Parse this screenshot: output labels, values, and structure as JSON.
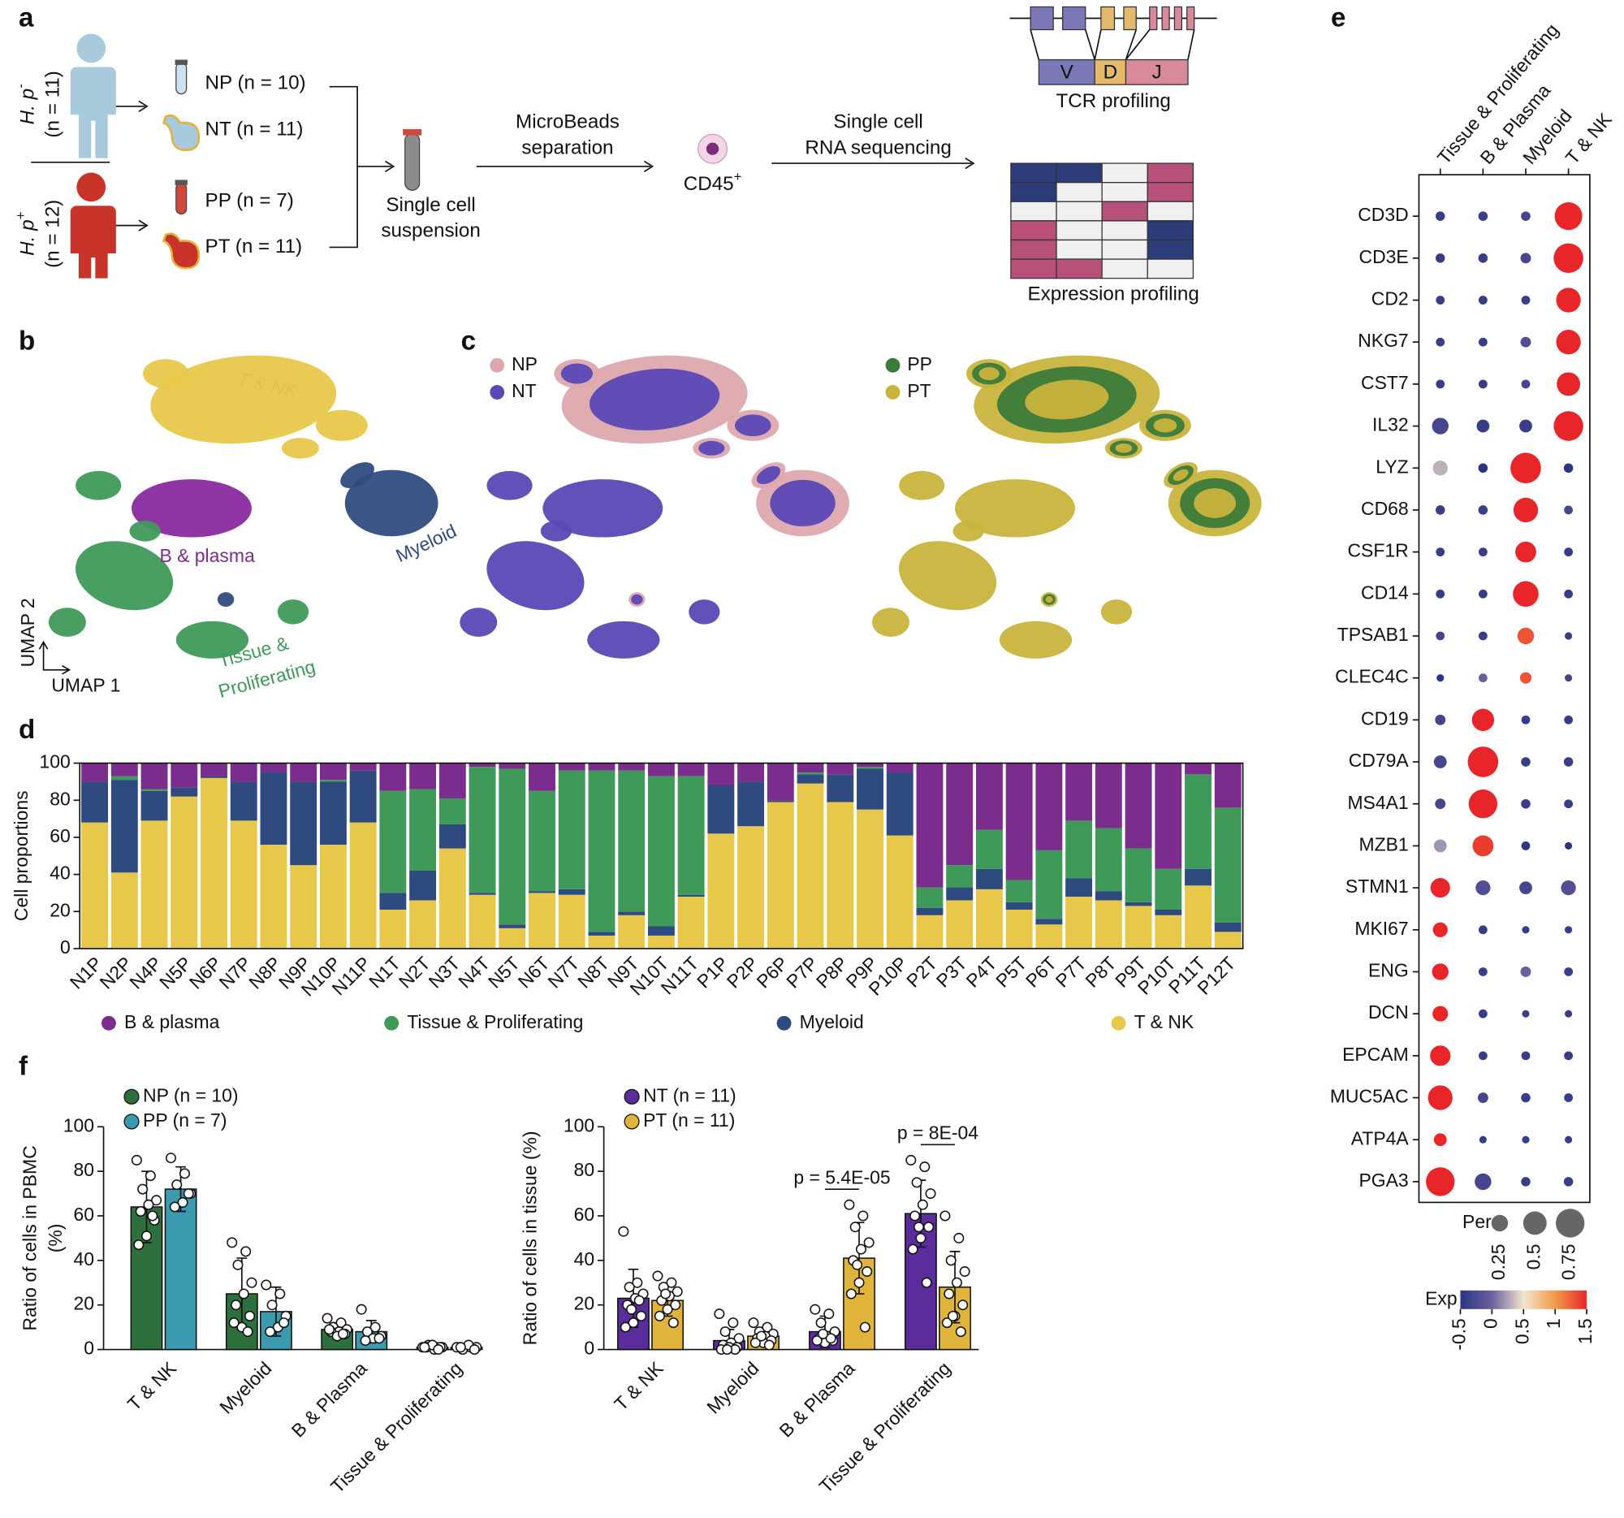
{
  "panels": [
    "a",
    "b",
    "c",
    "d",
    "e",
    "f"
  ],
  "schematic": {
    "hp": "H. p",
    "hp_neg": "-",
    "hp_pos": "+",
    "n_neg": "(n = 11)",
    "n_pos": "(n = 12)",
    "samples": [
      "NP (n = 10)",
      "NT (n = 11)",
      "PP (n = 7)",
      "PT (n = 11)"
    ],
    "suspension": [
      "Single cell",
      "suspension"
    ],
    "separation": [
      "MicroBeads",
      "separation"
    ],
    "cd45": "CD45",
    "cd45_sup": "+",
    "sequencing": [
      "Single cell",
      "RNA sequencing"
    ],
    "segments": [
      "V",
      "D",
      "J"
    ],
    "tcr": "TCR profiling",
    "expression": "Expression profiling"
  },
  "umap": {
    "clusters": [
      "T & NK",
      "B & plasma",
      "Myeloid"
    ],
    "tissue_lines": [
      "Tissue &",
      "Proliferating"
    ],
    "axes": [
      "UMAP 2",
      "UMAP 1"
    ],
    "legend": [
      {
        "name": "NP",
        "color": "#dca8ad"
      },
      {
        "name": "NT",
        "color": "#5a48b5"
      },
      {
        "name": "PP",
        "color": "#3b7a3b"
      },
      {
        "name": "PT",
        "color": "#c8b43c"
      }
    ]
  },
  "chart_data": [
    {
      "type": "stacked_bar",
      "ylabel": "Cell proportions",
      "categories": [
        "N1P",
        "N2P",
        "N4P",
        "N5P",
        "N6P",
        "N7P",
        "N8P",
        "N9P",
        "N10P",
        "N11P",
        "N1T",
        "N2T",
        "N3T",
        "N4T",
        "N5T",
        "N6T",
        "N7T",
        "N8T",
        "N9T",
        "N10T",
        "N11T",
        "P1P",
        "P2P",
        "P6P",
        "P7P",
        "P8P",
        "P9P",
        "P10P",
        "P2T",
        "P3T",
        "P4T",
        "P5T",
        "P6T",
        "P7T",
        "P8T",
        "P9T",
        "P10T",
        "P11T",
        "P12T"
      ],
      "series": [
        {
          "name": "B & plasma",
          "color": "#7b2d8e",
          "values": [
            10,
            7,
            14,
            13,
            7,
            10,
            5,
            10,
            9,
            4,
            15,
            14,
            19,
            2,
            3,
            15,
            4,
            4,
            4,
            7,
            7,
            12,
            10,
            20,
            5,
            6,
            2,
            5,
            67,
            55,
            36,
            63,
            47,
            31,
            35,
            46,
            57,
            6,
            24
          ]
        },
        {
          "name": "Tissue & Proliferating",
          "color": "#3f9a5a",
          "values": [
            0,
            2,
            1,
            0,
            0,
            0,
            0,
            0,
            1,
            0,
            55,
            44,
            14,
            68,
            84,
            54,
            64,
            87,
            76,
            81,
            64,
            0,
            0,
            0,
            1,
            0,
            1,
            0,
            11,
            12,
            21,
            12,
            37,
            31,
            34,
            29,
            22,
            51,
            62
          ]
        },
        {
          "name": "Myeloid",
          "color": "#2e4a7f",
          "values": [
            22,
            50,
            16,
            5,
            1,
            21,
            39,
            45,
            34,
            28,
            9,
            16,
            13,
            1,
            2,
            1,
            3,
            2,
            2,
            5,
            1,
            26,
            24,
            1,
            5,
            15,
            22,
            34,
            4,
            7,
            11,
            4,
            3,
            10,
            5,
            2,
            3,
            9,
            5
          ]
        },
        {
          "name": "T & NK",
          "color": "#e8c84a",
          "values": [
            68,
            41,
            69,
            82,
            92,
            69,
            56,
            45,
            56,
            68,
            21,
            26,
            54,
            29,
            11,
            30,
            29,
            7,
            18,
            7,
            28,
            62,
            66,
            79,
            89,
            79,
            75,
            61,
            18,
            26,
            32,
            21,
            13,
            28,
            26,
            23,
            18,
            34,
            9
          ]
        }
      ],
      "ylim": [
        0,
        100
      ],
      "yticks": [
        0,
        20,
        40,
        60,
        80,
        100
      ]
    },
    {
      "type": "dot",
      "groups": [
        "Tissue & Proliferating",
        "B & Plasma",
        "Myeloid",
        "T & NK"
      ],
      "genes": [
        "CD3D",
        "CD3E",
        "CD2",
        "NKG7",
        "CST7",
        "IL32",
        "LYZ",
        "CD68",
        "CSF1R",
        "CD14",
        "TPSAB1",
        "CLEC4C",
        "CD19",
        "CD79A",
        "MS4A1",
        "MZB1",
        "STMN1",
        "MKI67",
        "ENG",
        "DCN",
        "EPCAM",
        "MUC5AC",
        "ATP4A",
        "PGA3"
      ],
      "per": [
        [
          0.08,
          0.08,
          0.08,
          0.7
        ],
        [
          0.08,
          0.08,
          0.1,
          0.8
        ],
        [
          0.07,
          0.07,
          0.07,
          0.55
        ],
        [
          0.07,
          0.07,
          0.1,
          0.55
        ],
        [
          0.07,
          0.07,
          0.07,
          0.5
        ],
        [
          0.25,
          0.15,
          0.15,
          0.8
        ],
        [
          0.2,
          0.08,
          0.85,
          0.08
        ],
        [
          0.08,
          0.08,
          0.55,
          0.07
        ],
        [
          0.07,
          0.07,
          0.4,
          0.07
        ],
        [
          0.07,
          0.07,
          0.6,
          0.07
        ],
        [
          0.07,
          0.07,
          0.25,
          0.05
        ],
        [
          0.05,
          0.07,
          0.12,
          0.05
        ],
        [
          0.1,
          0.45,
          0.07,
          0.07
        ],
        [
          0.15,
          0.85,
          0.08,
          0.08
        ],
        [
          0.1,
          0.75,
          0.08,
          0.07
        ],
        [
          0.15,
          0.4,
          0.07,
          0.05
        ],
        [
          0.35,
          0.2,
          0.15,
          0.2
        ],
        [
          0.2,
          0.07,
          0.05,
          0.05
        ],
        [
          0.25,
          0.07,
          0.1,
          0.07
        ],
        [
          0.22,
          0.07,
          0.05,
          0.05
        ],
        [
          0.38,
          0.07,
          0.07,
          0.07
        ],
        [
          0.55,
          0.1,
          0.08,
          0.07
        ],
        [
          0.15,
          0.05,
          0.05,
          0.05
        ],
        [
          0.75,
          0.25,
          0.08,
          0.08
        ]
      ],
      "exp": [
        [
          -0.4,
          -0.4,
          -0.3,
          1.5
        ],
        [
          -0.4,
          -0.4,
          -0.3,
          1.5
        ],
        [
          -0.4,
          -0.4,
          -0.4,
          1.5
        ],
        [
          -0.4,
          -0.4,
          -0.2,
          1.5
        ],
        [
          -0.4,
          -0.4,
          -0.3,
          1.5
        ],
        [
          -0.3,
          -0.4,
          -0.4,
          1.5
        ],
        [
          0.3,
          -0.6,
          1.5,
          -0.6
        ],
        [
          -0.4,
          -0.4,
          1.5,
          -0.3
        ],
        [
          -0.4,
          -0.4,
          1.5,
          -0.4
        ],
        [
          -0.4,
          -0.4,
          1.5,
          -0.4
        ],
        [
          -0.3,
          -0.4,
          1.3,
          -0.4
        ],
        [
          -0.5,
          0,
          1.3,
          -0.3
        ],
        [
          -0.3,
          1.5,
          -0.4,
          -0.4
        ],
        [
          -0.3,
          1.5,
          -0.4,
          -0.4
        ],
        [
          -0.3,
          1.5,
          -0.4,
          -0.4
        ],
        [
          0.2,
          1.4,
          -0.5,
          -0.6
        ],
        [
          1.5,
          -0.2,
          -0.3,
          -0.2
        ],
        [
          1.5,
          -0.4,
          -0.4,
          -0.4
        ],
        [
          1.5,
          -0.4,
          0,
          -0.4
        ],
        [
          1.5,
          -0.4,
          -0.4,
          -0.4
        ],
        [
          1.5,
          -0.4,
          -0.4,
          -0.4
        ],
        [
          1.5,
          -0.3,
          -0.4,
          -0.4
        ],
        [
          1.5,
          -0.4,
          -0.4,
          -0.4
        ],
        [
          1.5,
          -0.3,
          -0.4,
          -0.4
        ]
      ],
      "size_title": "Per",
      "size_ticks": [
        0.25,
        0.5,
        0.75
      ],
      "color_title": "Exp",
      "color_lim": [
        -0.5,
        1.5
      ],
      "color_ticks": [
        -0.5,
        0,
        0.5,
        1,
        1.5
      ],
      "colors": [
        "#2b3584",
        "#6b5f9e",
        "#f1e6cf",
        "#f19a48",
        "#e8262a"
      ]
    },
    {
      "type": "bar",
      "ylabel": [
        "Ratio of cells in PBMC",
        "(%)"
      ],
      "categories": [
        "T & NK",
        "Myeloid",
        "B & Plasma",
        "Tissue & Proliferating"
      ],
      "series": [
        {
          "name": "NP (n = 10)",
          "color": "#2e6f3e",
          "values": [
            64,
            25,
            9,
            1
          ],
          "errors": [
            16,
            16,
            3,
            0.5
          ],
          "points": [
            [
              85,
              78,
              72,
              67,
              65,
              62,
              58,
              51,
              47,
              60
            ],
            [
              48,
              44,
              38,
              30,
              25,
              20,
              15,
              10,
              12,
              8
            ],
            [
              14,
              12,
              10,
              9,
              8,
              8,
              7,
              6,
              9,
              7
            ],
            [
              1,
              1,
              2,
              1,
              0,
              1,
              1,
              2,
              1,
              0
            ]
          ]
        },
        {
          "name": "PP (n = 7)",
          "color": "#3b9aad",
          "values": [
            72,
            17,
            8,
            1
          ],
          "errors": [
            10,
            11,
            5,
            0.5
          ],
          "points": [
            [
              86,
              79,
              74,
              70,
              66,
              64,
              70
            ],
            [
              29,
              25,
              20,
              15,
              10,
              8,
              12
            ],
            [
              18,
              10,
              8,
              6,
              5,
              4,
              5
            ],
            [
              1,
              1,
              0,
              1,
              2,
              1,
              0
            ]
          ]
        }
      ],
      "ylim": [
        0,
        100
      ],
      "yticks": [
        0,
        20,
        40,
        60,
        80,
        100
      ]
    },
    {
      "type": "bar",
      "ylabel": [
        "Ratio of cells in tissue (%)"
      ],
      "categories": [
        "T & NK",
        "Myeloid",
        "B & Plasma",
        "Tissue & Proliferating"
      ],
      "series": [
        {
          "name": "NT (n = 11)",
          "color": "#5b2d9c",
          "values": [
            23,
            4,
            8,
            61
          ],
          "errors": [
            13,
            5,
            7,
            15
          ],
          "points": [
            [
              53,
              30,
              28,
              25,
              23,
              20,
              15,
              12,
              10,
              22,
              18
            ],
            [
              16,
              12,
              8,
              5,
              3,
              2,
              1,
              1,
              0,
              0,
              0
            ],
            [
              18,
              16,
              12,
              8,
              6,
              5,
              4,
              3,
              4,
              5,
              7
            ],
            [
              85,
              82,
              75,
              70,
              65,
              60,
              55,
              50,
              45,
              30,
              55
            ]
          ]
        },
        {
          "name": "PT (n = 11)",
          "color": "#e0b43a",
          "values": [
            22,
            6,
            41,
            28
          ],
          "errors": [
            7,
            3,
            16,
            16
          ],
          "points": [
            [
              33,
              30,
              28,
              26,
              24,
              22,
              20,
              18,
              15,
              12,
              25
            ],
            [
              12,
              10,
              8,
              7,
              6,
              5,
              4,
              3,
              3,
              2,
              6
            ],
            [
              65,
              60,
              55,
              48,
              45,
              40,
              35,
              30,
              25,
              10,
              38
            ],
            [
              60,
              50,
              40,
              35,
              30,
              25,
              20,
              15,
              12,
              8,
              15
            ]
          ]
        }
      ],
      "annotations": [
        "p = 5.4E-05",
        "p = 8E-04"
      ],
      "ylim": [
        0,
        100
      ],
      "yticks": [
        0,
        20,
        40,
        60,
        80,
        100
      ]
    }
  ]
}
